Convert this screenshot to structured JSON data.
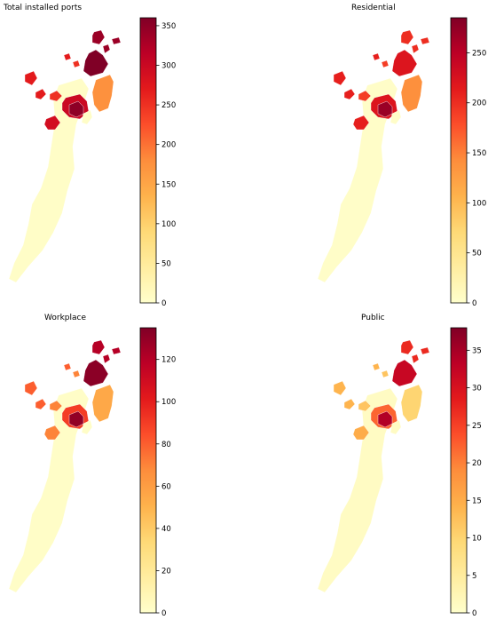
{
  "figure": {
    "panels": [
      {
        "id": "total",
        "title": "Total installed ports",
        "colorbar": {
          "min": 0,
          "max": 360,
          "ticks": [
            0,
            50,
            100,
            150,
            200,
            250,
            300,
            350
          ]
        },
        "regions": {
          "northeast": 360,
          "northeast_small": 340,
          "eastern_strip": 175,
          "west_islands": 270,
          "west_island_b": 250,
          "center": 350,
          "center_ring": 300,
          "southwest_islet": 290,
          "south_body": 5
        }
      },
      {
        "id": "residential",
        "title": "Residential",
        "colorbar": {
          "min": 0,
          "max": 285,
          "ticks": [
            0,
            50,
            100,
            150,
            200,
            250
          ]
        },
        "regions": {
          "northeast": 220,
          "northeast_small": 200,
          "eastern_strip": 140,
          "west_islands": 210,
          "west_island_b": 190,
          "center": 270,
          "center_ring": 220,
          "southwest_islet": 210,
          "south_body": 3
        }
      },
      {
        "id": "workplace",
        "title": "Workplace",
        "colorbar": {
          "min": 0,
          "max": 135,
          "ticks": [
            0,
            20,
            40,
            60,
            80,
            100,
            120
          ]
        },
        "regions": {
          "northeast": 132,
          "northeast_small": 120,
          "eastern_strip": 55,
          "west_islands": 80,
          "west_island_b": 70,
          "center": 130,
          "center_ring": 90,
          "southwest_islet": 70,
          "south_body": 2
        }
      },
      {
        "id": "public",
        "title": "Public",
        "colorbar": {
          "min": 0,
          "max": 38,
          "ticks": [
            0,
            5,
            10,
            15,
            20,
            25,
            30,
            35
          ]
        },
        "regions": {
          "northeast": 32,
          "northeast_small": 27,
          "eastern_strip": 10,
          "west_islands": 14,
          "west_island_b": 12,
          "center": 34,
          "center_ring": 22,
          "southwest_islet": 15,
          "south_body": 1
        }
      }
    ],
    "colormap": [
      "#ffffcc",
      "#ffeda0",
      "#fed976",
      "#feb24c",
      "#fd8d3c",
      "#fc4e2a",
      "#e31a1c",
      "#bd0026",
      "#800026"
    ]
  }
}
